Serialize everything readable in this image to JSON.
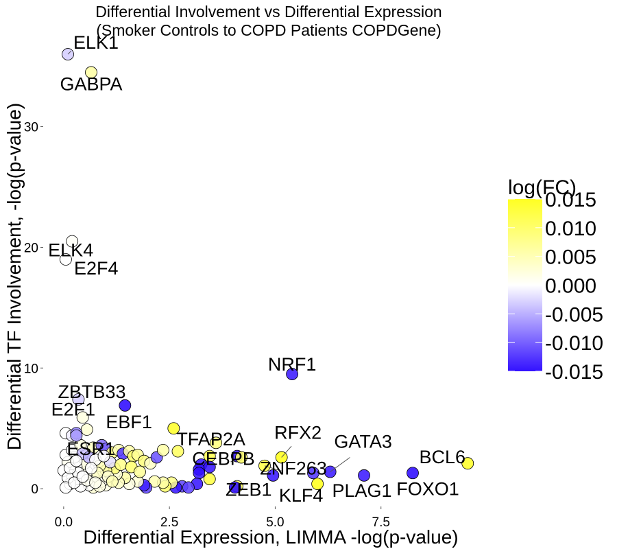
{
  "chart_data": {
    "type": "scatter",
    "title": "Differential Involvement vs Differential Expression",
    "subtitle": "(Smoker Controls to COPD Patients COPDGene)",
    "xlabel": "Differential Expression,  LIMMA -log(p-value)",
    "ylabel": "Differential TF Involvement, -log(p-value)",
    "xlim": [
      -0.5,
      10.0
    ],
    "ylim": [
      -1.3,
      36.8
    ],
    "x_ticks": [
      0.0,
      2.5,
      5.0,
      7.5
    ],
    "x_tick_labels": [
      "0.0",
      "2.5",
      "5.0",
      "7.5"
    ],
    "y_ticks": [
      0,
      10,
      20,
      30
    ],
    "y_tick_labels": [
      "0",
      "10",
      "20",
      "30"
    ],
    "grid": false,
    "legend": {
      "title": "log(FC)",
      "placement": "right",
      "ticks": [
        0.015,
        0.01,
        0.005,
        0.0,
        -0.005,
        -0.01,
        -0.015
      ],
      "tick_labels": [
        "0.015",
        "0.010",
        "0.005",
        "0.000",
        "-0.005",
        "-0.010",
        "-0.015"
      ],
      "low_color": "#3311ff",
      "mid_color": "#ffffff",
      "high_color": "#ffff22"
    },
    "labeled_points": [
      {
        "name": "ELK1",
        "x": 0.1,
        "y": 36.0,
        "fc": -0.003
      },
      {
        "name": "GABPA",
        "x": 0.65,
        "y": 34.5,
        "fc": 0.006
      },
      {
        "name": "ELK4",
        "x": 0.2,
        "y": 20.5,
        "fc": 0.0005
      },
      {
        "name": "E2F4",
        "x": 0.05,
        "y": 19.0,
        "fc": 0.0
      },
      {
        "name": "NRF1",
        "x": 5.4,
        "y": 9.5,
        "fc": -0.014
      },
      {
        "name": "ZBTB33",
        "x": 0.35,
        "y": 7.4,
        "fc": -0.003
      },
      {
        "name": "EBF1",
        "x": 1.45,
        "y": 6.9,
        "fc": -0.015
      },
      {
        "name": "E2F1",
        "x": 0.45,
        "y": 5.9,
        "fc": 0.002
      },
      {
        "name": "TFAP2A",
        "x": 2.6,
        "y": 5.0,
        "fc": 0.014
      },
      {
        "name": "ESR1",
        "x": 0.3,
        "y": 4.4,
        "fc": -0.006
      },
      {
        "name": "RFX2",
        "x": 5.15,
        "y": 2.6,
        "fc": 0.015
      },
      {
        "name": "CEBPB",
        "x": 4.2,
        "y": 2.6,
        "fc": 0.01
      },
      {
        "name": "GATA3",
        "x": 6.3,
        "y": 1.4,
        "fc": -0.014
      },
      {
        "name": "BCL6",
        "x": 9.55,
        "y": 2.1,
        "fc": 0.014
      },
      {
        "name": "ZNF263",
        "x": 4.75,
        "y": 1.9,
        "fc": 0.012
      },
      {
        "name": "PLAG1",
        "x": 7.1,
        "y": 1.1,
        "fc": -0.014
      },
      {
        "name": "FOXO1",
        "x": 8.25,
        "y": 1.3,
        "fc": -0.015
      },
      {
        "name": "ZEB1",
        "x": 4.05,
        "y": 0.1,
        "fc": -0.015
      },
      {
        "name": "KLF4",
        "x": 6.0,
        "y": 0.4,
        "fc": 0.015
      }
    ],
    "points": [
      {
        "x": 0.05,
        "y": 4.6,
        "fc": 0.0
      },
      {
        "x": 0.2,
        "y": 4.4,
        "fc": -0.001
      },
      {
        "x": 0.55,
        "y": 4.9,
        "fc": 0.003
      },
      {
        "x": 0.3,
        "y": 4.6,
        "fc": -0.008
      },
      {
        "x": 0.7,
        "y": 3.4,
        "fc": 0.004
      },
      {
        "x": 0.9,
        "y": 3.6,
        "fc": -0.009
      },
      {
        "x": 1.0,
        "y": 3.3,
        "fc": -0.01
      },
      {
        "x": 1.15,
        "y": 3.0,
        "fc": 0.008
      },
      {
        "x": 1.3,
        "y": 3.2,
        "fc": 0.005
      },
      {
        "x": 1.4,
        "y": 2.9,
        "fc": -0.013
      },
      {
        "x": 1.55,
        "y": 3.1,
        "fc": 0.006
      },
      {
        "x": 1.65,
        "y": 2.7,
        "fc": 0.01
      },
      {
        "x": 1.75,
        "y": 2.8,
        "fc": 0.007
      },
      {
        "x": 1.9,
        "y": 2.3,
        "fc": 0.009
      },
      {
        "x": 2.05,
        "y": 2.1,
        "fc": 0.004
      },
      {
        "x": 2.2,
        "y": 2.6,
        "fc": -0.011
      },
      {
        "x": 2.35,
        "y": 3.2,
        "fc": 0.006
      },
      {
        "x": 2.7,
        "y": 3.1,
        "fc": 0.011
      },
      {
        "x": 3.45,
        "y": 2.7,
        "fc": 0.012
      },
      {
        "x": 3.6,
        "y": 3.8,
        "fc": 0.009
      },
      {
        "x": 3.25,
        "y": 2.0,
        "fc": -0.015
      },
      {
        "x": 3.2,
        "y": 1.6,
        "fc": -0.015
      },
      {
        "x": 3.2,
        "y": 1.3,
        "fc": -0.015
      },
      {
        "x": 3.45,
        "y": 1.8,
        "fc": -0.015
      },
      {
        "x": 3.15,
        "y": 0.4,
        "fc": -0.015
      },
      {
        "x": 3.45,
        "y": 0.8,
        "fc": 0.013
      },
      {
        "x": 4.1,
        "y": 2.7,
        "fc": -0.015
      },
      {
        "x": 4.1,
        "y": 0.2,
        "fc": 0.011
      },
      {
        "x": 4.95,
        "y": 1.1,
        "fc": -0.015
      },
      {
        "x": 5.9,
        "y": 1.3,
        "fc": -0.013
      },
      {
        "x": 2.8,
        "y": 0.2,
        "fc": -0.012
      },
      {
        "x": 2.95,
        "y": 0.1,
        "fc": -0.012
      },
      {
        "x": 2.65,
        "y": 0.1,
        "fc": -0.015
      },
      {
        "x": 2.55,
        "y": 0.5,
        "fc": 0.008
      },
      {
        "x": 2.4,
        "y": 0.2,
        "fc": 0.01
      },
      {
        "x": 2.35,
        "y": 0.5,
        "fc": 0.006
      },
      {
        "x": 2.15,
        "y": 0.6,
        "fc": 0.005
      },
      {
        "x": 1.95,
        "y": 0.1,
        "fc": -0.012
      },
      {
        "x": 1.9,
        "y": 0.3,
        "fc": -0.014
      },
      {
        "x": 1.75,
        "y": 0.6,
        "fc": 0.003
      },
      {
        "x": 1.55,
        "y": 0.4,
        "fc": 0.002
      },
      {
        "x": 1.45,
        "y": 0.9,
        "fc": 0.006
      },
      {
        "x": 1.3,
        "y": 0.5,
        "fc": 0.004
      },
      {
        "x": 1.25,
        "y": 1.2,
        "fc": 0.003
      },
      {
        "x": 1.2,
        "y": 1.7,
        "fc": 0.009
      },
      {
        "x": 1.0,
        "y": 1.5,
        "fc": 0.007
      },
      {
        "x": 1.0,
        "y": 0.3,
        "fc": 0.002
      },
      {
        "x": 0.9,
        "y": 0.6,
        "fc": 0.001
      },
      {
        "x": 0.85,
        "y": 1.9,
        "fc": 0.005
      },
      {
        "x": 0.7,
        "y": 1.0,
        "fc": 0.001
      },
      {
        "x": 0.7,
        "y": 0.1,
        "fc": 0.003
      },
      {
        "x": 0.6,
        "y": 0.3,
        "fc": 0.0
      },
      {
        "x": 0.55,
        "y": 1.4,
        "fc": 0.001
      },
      {
        "x": 0.5,
        "y": 2.1,
        "fc": 0.002
      },
      {
        "x": 0.4,
        "y": 0.2,
        "fc": 0.0
      },
      {
        "x": 0.35,
        "y": 0.8,
        "fc": 0.0
      },
      {
        "x": 0.3,
        "y": 1.8,
        "fc": 0.0
      },
      {
        "x": 0.25,
        "y": 2.6,
        "fc": 0.0
      },
      {
        "x": 0.2,
        "y": 1.1,
        "fc": 0.0
      },
      {
        "x": 0.15,
        "y": 0.4,
        "fc": 0.0
      },
      {
        "x": 0.1,
        "y": 2.2,
        "fc": 0.001
      },
      {
        "x": 0.05,
        "y": 2.8,
        "fc": 0.0
      },
      {
        "x": 0.0,
        "y": 1.5,
        "fc": 0.0
      },
      {
        "x": 0.1,
        "y": 0.9,
        "fc": 0.0
      },
      {
        "x": 0.05,
        "y": 0.1,
        "fc": 0.0
      },
      {
        "x": 0.2,
        "y": 3.2,
        "fc": 0.0
      },
      {
        "x": 0.4,
        "y": 3.6,
        "fc": 0.002
      },
      {
        "x": 0.45,
        "y": 2.9,
        "fc": -0.004
      },
      {
        "x": 0.6,
        "y": 2.6,
        "fc": -0.005
      },
      {
        "x": 0.75,
        "y": 2.4,
        "fc": 0.0
      },
      {
        "x": 0.8,
        "y": 1.3,
        "fc": 0.004
      },
      {
        "x": 1.1,
        "y": 2.2,
        "fc": -0.002
      },
      {
        "x": 1.35,
        "y": 2.0,
        "fc": 0.008
      },
      {
        "x": 1.6,
        "y": 1.8,
        "fc": 0.01
      },
      {
        "x": 1.8,
        "y": 1.4,
        "fc": 0.007
      },
      {
        "x": 0.35,
        "y": 1.3,
        "fc": 0.0
      },
      {
        "x": 0.25,
        "y": 0.5,
        "fc": 0.0
      },
      {
        "x": 0.55,
        "y": 0.7,
        "fc": 0.001
      },
      {
        "x": 0.65,
        "y": 1.7,
        "fc": 0.0
      },
      {
        "x": 0.95,
        "y": 2.7,
        "fc": 0.0
      },
      {
        "x": 1.05,
        "y": 1.0,
        "fc": 0.003
      },
      {
        "x": 0.85,
        "y": 0.2,
        "fc": 0.002
      },
      {
        "x": 1.15,
        "y": 0.6,
        "fc": 0.005
      },
      {
        "x": 0.15,
        "y": 1.7,
        "fc": 0.0
      },
      {
        "x": 0.45,
        "y": 1.0,
        "fc": 0.0
      },
      {
        "x": 0.75,
        "y": 0.5,
        "fc": 0.001
      },
      {
        "x": 0.3,
        "y": 2.3,
        "fc": 0.0
      }
    ]
  }
}
